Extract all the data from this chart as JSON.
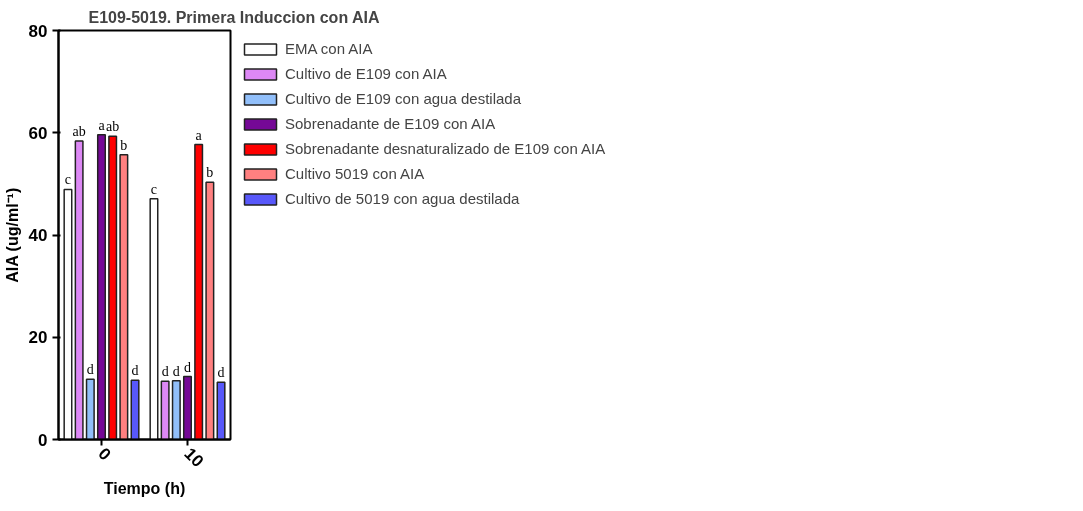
{
  "chart_data": {
    "type": "bar",
    "title": "E109-5019. Primera Induccion con AIA",
    "xlabel": "Tiempo (h)",
    "ylabel": "AIA (ug/ml⁻¹)",
    "categories": [
      "0",
      "10"
    ],
    "series": [
      {
        "name": "EMA con AIA",
        "color": "#ffffff",
        "values": [
          48.9,
          47.1
        ],
        "value_labels": [
          "c",
          "c"
        ]
      },
      {
        "name": "Cultivo de E109 con AIA",
        "color": "#dd88f5",
        "values": [
          58.4,
          11.4
        ],
        "value_labels": [
          "ab",
          "d"
        ]
      },
      {
        "name": "Cultivo de E109 con agua destilada",
        "color": "#91bffa",
        "values": [
          11.8,
          11.5
        ],
        "value_labels": [
          "d",
          "d"
        ]
      },
      {
        "name": "Sobrenadante de E109 con AIA",
        "color": "#750896",
        "values": [
          59.6,
          12.3
        ],
        "value_labels": [
          "a",
          "d"
        ]
      },
      {
        "name": "Sobrenadante desnaturalizado de E109 con AIA",
        "color": "#ff0000",
        "values": [
          59.3,
          57.7
        ],
        "value_labels": [
          "ab",
          "a"
        ]
      },
      {
        "name": "Cultivo 5019 con AIA",
        "color": "#ff8080",
        "values": [
          55.7,
          50.3
        ],
        "value_labels": [
          "b",
          "b"
        ]
      },
      {
        "name": "Cultivo de 5019 con agua destilada",
        "color": "#5858fa",
        "values": [
          11.6,
          11.2
        ],
        "value_labels": [
          "d",
          "d"
        ]
      }
    ],
    "ylim": [
      0,
      80
    ],
    "yticks": [
      0,
      20,
      40,
      60,
      80
    ],
    "grid": false,
    "legend": "right"
  }
}
